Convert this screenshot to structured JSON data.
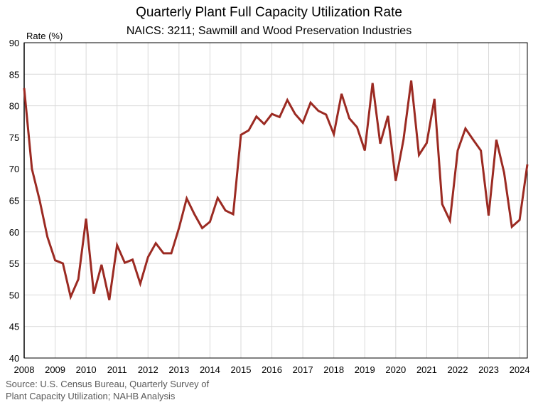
{
  "chart_data": {
    "type": "line",
    "title": "Quarterly Plant Full Capacity Utilization Rate",
    "subtitle": "NAICS: 3211; Sawmill and Wood Preservation Industries",
    "ylabel": "Rate (%)",
    "xlabel": "",
    "ylim": [
      40,
      90
    ],
    "yticks": [
      40,
      45,
      50,
      55,
      60,
      65,
      70,
      75,
      80,
      85,
      90
    ],
    "xticks": [
      "2008",
      "2009",
      "2010",
      "2011",
      "2012",
      "2013",
      "2014",
      "2015",
      "2016",
      "2017",
      "2018",
      "2019",
      "2020",
      "2021",
      "2022",
      "2023",
      "2024"
    ],
    "xrange": [
      "2008 Q1",
      "2024 Q2"
    ],
    "frequency": "quarterly",
    "grid": true,
    "line_color": "#9b2a22",
    "series": [
      {
        "values": [
          82.8,
          70.0,
          65.0,
          59.2,
          55.5,
          55.0,
          49.7,
          52.5,
          62.1,
          50.2,
          54.8,
          49.2,
          57.9,
          55.1,
          55.6,
          51.8,
          56.0,
          58.2,
          56.6,
          56.6,
          60.6,
          65.3,
          62.8,
          60.6,
          61.6,
          65.4,
          63.4,
          62.8,
          75.4,
          76.1,
          78.3,
          77.1,
          78.7,
          78.2,
          80.9,
          78.7,
          77.3,
          80.5,
          79.2,
          78.6,
          75.5,
          81.9,
          78.0,
          76.6,
          72.9,
          83.6,
          74.0,
          78.4,
          68.1,
          74.6,
          84.0,
          72.2,
          74.1,
          81.1,
          64.4,
          61.8,
          72.9,
          76.4,
          74.6,
          72.9,
          62.6,
          74.6,
          69.4,
          60.8,
          61.9,
          70.7
        ]
      }
    ]
  },
  "source": {
    "line1": "Source: U.S. Census Bureau, Quarterly Survey of",
    "line2": "Plant Capacity Utilization; NAHB Analysis"
  }
}
